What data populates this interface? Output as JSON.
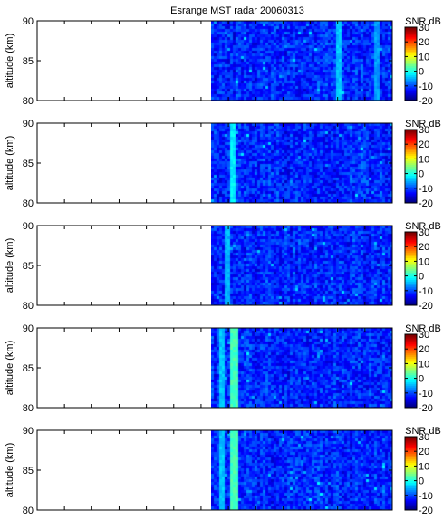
{
  "chart_data": {
    "type": "heatmap",
    "title": "Esrange MST radar 20060313",
    "panels": [
      {
        "ylabel": "altitude (km)",
        "ylim": [
          80,
          90
        ],
        "yticks": [
          "80",
          "85",
          "90"
        ],
        "colorbar": {
          "label": "SNR dB",
          "range": [
            -20,
            30
          ],
          "ticks": [
            "-20",
            "-10",
            "0",
            "10",
            "20",
            "30"
          ]
        },
        "data_start_fraction": 0.49,
        "typical_snr_db": -12,
        "bright_columns": [
          {
            "x_fraction": 0.845,
            "snr_db": -4
          },
          {
            "x_fraction": 0.95,
            "snr_db": -6
          }
        ]
      },
      {
        "ylabel": "altitude (km)",
        "ylim": [
          80,
          90
        ],
        "yticks": [
          "80",
          "85",
          "90"
        ],
        "colorbar": {
          "label": "SNR dB",
          "range": [
            -20,
            30
          ],
          "ticks": [
            "-20",
            "-10",
            "0",
            "10",
            "20",
            "30"
          ]
        },
        "data_start_fraction": 0.49,
        "typical_snr_db": -12,
        "bright_columns": [
          {
            "x_fraction": 0.545,
            "snr_db": -2
          }
        ]
      },
      {
        "ylabel": "altitude (km)",
        "ylim": [
          80,
          90
        ],
        "yticks": [
          "80",
          "85",
          "90"
        ],
        "colorbar": {
          "label": "SNR dB",
          "range": [
            -20,
            30
          ],
          "ticks": [
            "-20",
            "-10",
            "0",
            "10",
            "20",
            "30"
          ]
        },
        "data_start_fraction": 0.49,
        "typical_snr_db": -12,
        "bright_columns": [
          {
            "x_fraction": 0.53,
            "snr_db": -5
          }
        ]
      },
      {
        "ylabel": "altitude (km)",
        "ylim": [
          80,
          90
        ],
        "yticks": [
          "80",
          "85",
          "90"
        ],
        "colorbar": {
          "label": "SNR dB",
          "range": [
            -20,
            30
          ],
          "ticks": [
            "-20",
            "-10",
            "0",
            "10",
            "20",
            "30"
          ]
        },
        "data_start_fraction": 0.49,
        "typical_snr_db": -12,
        "bright_columns": [
          {
            "x_fraction": 0.513,
            "snr_db": -4
          },
          {
            "x_fraction": 0.548,
            "snr_db": 2
          },
          {
            "x_fraction": 0.553,
            "snr_db": 2
          }
        ]
      },
      {
        "ylabel": "altitude (km)",
        "ylim": [
          80,
          90
        ],
        "yticks": [
          "80",
          "85",
          "90"
        ],
        "colorbar": {
          "label": "SNR dB",
          "range": [
            -20,
            30
          ],
          "ticks": [
            "-20",
            "-10",
            "0",
            "10",
            "20",
            "30"
          ]
        },
        "data_start_fraction": 0.49,
        "typical_snr_db": -12,
        "bright_columns": [
          {
            "x_fraction": 0.513,
            "snr_db": -4
          },
          {
            "x_fraction": 0.548,
            "snr_db": 2
          },
          {
            "x_fraction": 0.553,
            "snr_db": 2
          }
        ]
      }
    ]
  }
}
